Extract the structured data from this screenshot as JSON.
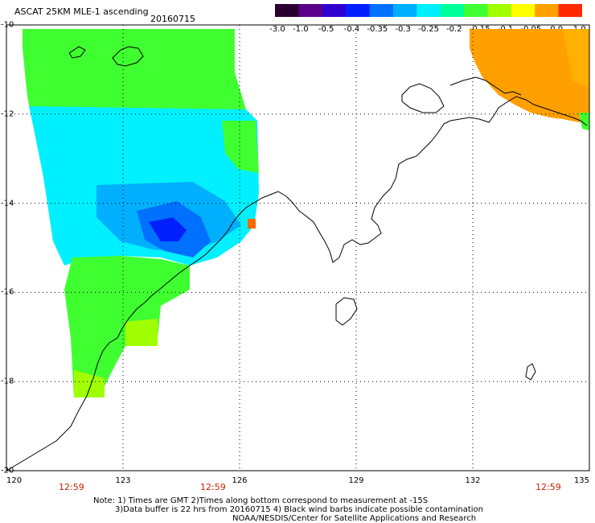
{
  "title": {
    "product": "ASCAT 25KM MLE-1 ascending",
    "date": "20160715"
  },
  "colorbar": {
    "ticks": [
      "-3.0",
      "-1.0",
      "-0.5",
      "-0.4",
      "-0.35",
      "-0.3",
      "-0.25",
      "-0.2",
      "-0.15",
      "-0.1",
      "-0.05",
      "0.0",
      "1.0"
    ],
    "colors": [
      "#2a0030",
      "#5a008a",
      "#3000d0",
      "#0020ff",
      "#0070ff",
      "#00b0ff",
      "#00f0ff",
      "#00ff9a",
      "#40ff30",
      "#a0ff00",
      "#ffff00",
      "#ffa000",
      "#ff2a00"
    ]
  },
  "axes": {
    "lon_labels": [
      "120",
      "123",
      "126",
      "129",
      "132",
      "135"
    ],
    "lat_labels": [
      "-10",
      "-12",
      "-14",
      "-16",
      "-18",
      "-20"
    ]
  },
  "times": [
    "12:59",
    "12:59",
    "12:59"
  ],
  "notes": {
    "line1": "Note: 1) Times are GMT 2)Times along bottom correspond to measurement at -15S",
    "line2": "3)Data buffer is 22 hrs from 20160715 4) Black wind barbs indicate possible contamination",
    "line3": "NOAA/NESDIS/Center for Satellite Applications and Research"
  }
}
